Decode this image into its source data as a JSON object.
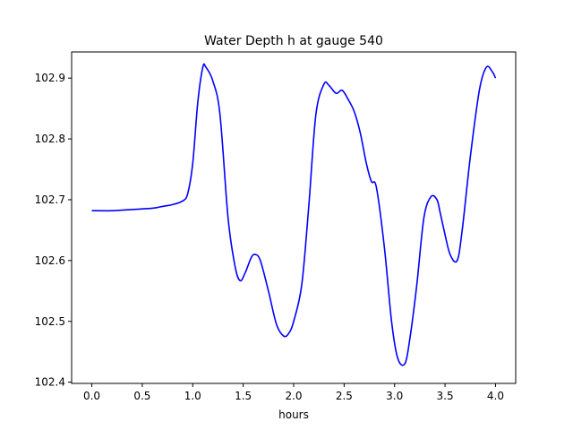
{
  "chart_data": {
    "type": "line",
    "title": "Water Depth h at gauge 540",
    "xlabel": "hours",
    "ylabel": "",
    "xlim": [
      -0.2,
      4.2
    ],
    "ylim": [
      102.398,
      102.943
    ],
    "xticks": [
      0.0,
      0.5,
      1.0,
      1.5,
      2.0,
      2.5,
      3.0,
      3.5,
      4.0
    ],
    "xtick_labels": [
      "0.0",
      "0.5",
      "1.0",
      "1.5",
      "2.0",
      "2.5",
      "3.0",
      "3.5",
      "4.0"
    ],
    "yticks": [
      102.4,
      102.5,
      102.6,
      102.7,
      102.8,
      102.9
    ],
    "ytick_labels": [
      "102.4",
      "102.5",
      "102.6",
      "102.7",
      "102.8",
      "102.9"
    ],
    "grid": false,
    "series": [
      {
        "name": "",
        "color": "#0000ff",
        "x": [
          0.0,
          0.2,
          0.4,
          0.6,
          0.7,
          0.8,
          0.9,
          0.95,
          1.0,
          1.05,
          1.1,
          1.13,
          1.2,
          1.27,
          1.35,
          1.42,
          1.47,
          1.52,
          1.58,
          1.62,
          1.67,
          1.75,
          1.83,
          1.9,
          1.95,
          2.0,
          2.08,
          2.15,
          2.22,
          2.3,
          2.35,
          2.42,
          2.48,
          2.54,
          2.6,
          2.66,
          2.72,
          2.77,
          2.82,
          2.9,
          2.97,
          3.03,
          3.1,
          3.15,
          3.22,
          3.29,
          3.36,
          3.42,
          3.45,
          3.49,
          3.55,
          3.62,
          3.67,
          3.75,
          3.84,
          3.91,
          3.97,
          4.0
        ],
        "y": [
          102.682,
          102.682,
          102.684,
          102.686,
          102.689,
          102.692,
          102.698,
          102.71,
          102.76,
          102.86,
          102.918,
          102.918,
          102.895,
          102.84,
          102.67,
          102.59,
          102.567,
          102.58,
          102.605,
          102.61,
          102.6,
          102.55,
          102.495,
          102.476,
          102.48,
          102.5,
          102.56,
          102.69,
          102.84,
          102.89,
          102.888,
          102.875,
          102.88,
          102.865,
          102.845,
          102.81,
          102.76,
          102.73,
          102.72,
          102.62,
          102.5,
          102.44,
          102.43,
          102.47,
          102.56,
          102.67,
          102.705,
          102.7,
          102.68,
          102.65,
          102.61,
          102.6,
          102.65,
          102.77,
          102.88,
          102.918,
          102.91,
          102.9
        ]
      }
    ]
  }
}
